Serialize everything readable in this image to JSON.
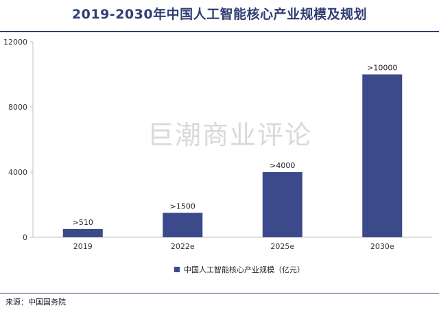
{
  "header": {
    "title": "2019-2030年中国人工智能核心产业规模及规划"
  },
  "watermark": "巨潮商业评论",
  "footer": {
    "source": "来源：中国国务院"
  },
  "colors": {
    "bar": "#3c4a8c",
    "title": "#2f3d73",
    "axis": "#bfbfbf"
  },
  "chart_data": {
    "type": "bar",
    "categories": [
      "2019",
      "2022e",
      "2025e",
      "2030e"
    ],
    "series": [
      {
        "name": "中国人工智能核心产业规模（亿元）",
        "values": [
          510,
          1500,
          4000,
          10000
        ]
      }
    ],
    "data_labels": [
      ">510",
      ">1500",
      ">4000",
      ">10000"
    ],
    "yticks": [
      0,
      4000,
      8000,
      12000
    ],
    "ylim": [
      0,
      12000
    ],
    "grid": false,
    "legend": "bottom-center",
    "title": "2019-2030年中国人工智能核心产业规模及规划"
  }
}
